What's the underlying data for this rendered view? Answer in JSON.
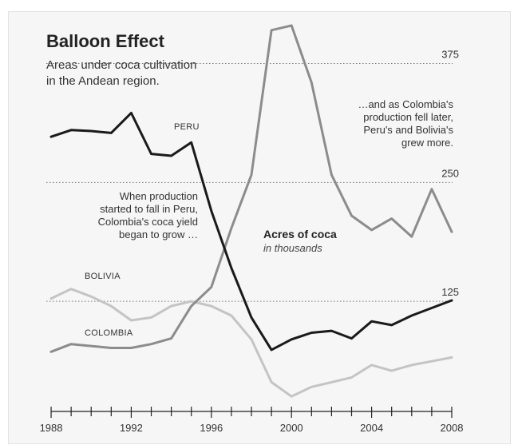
{
  "chart_data": {
    "type": "line",
    "title": "Balloon Effect",
    "subtitle_lines": [
      "Areas under coca cultivation",
      "in the Andean region."
    ],
    "units_label": "Acres of coca",
    "units_sublabel": "in thousands",
    "x": [
      1988,
      1989,
      1990,
      1991,
      1992,
      1993,
      1994,
      1995,
      1996,
      1997,
      1998,
      1999,
      2000,
      2001,
      2002,
      2003,
      2004,
      2005,
      2006,
      2007,
      2008
    ],
    "x_ticks": [
      1988,
      1992,
      1996,
      2000,
      2004,
      2008
    ],
    "xlim": [
      1987.6,
      2008.2
    ],
    "ylim": [
      0,
      430
    ],
    "yticks": [
      125,
      250,
      375
    ],
    "grid": "dotted-horizontal",
    "series": [
      {
        "name": "PERU",
        "color": "#1a1a1a",
        "values": [
          298,
          305,
          304,
          302,
          323,
          280,
          278,
          292,
          220,
          160,
          108,
          74,
          85,
          92,
          94,
          86,
          104,
          100,
          110,
          118,
          126
        ]
      },
      {
        "name": "COLOMBIA",
        "color": "#8c8c8c",
        "values": [
          72,
          80,
          78,
          76,
          76,
          80,
          86,
          120,
          140,
          202,
          258,
          410,
          415,
          355,
          258,
          215,
          200,
          212,
          193,
          243,
          198
        ]
      },
      {
        "name": "BOLIVIA",
        "color": "#c4c4c4",
        "values": [
          128,
          138,
          130,
          120,
          105,
          108,
          120,
          125,
          120,
          110,
          85,
          40,
          25,
          35,
          40,
          45,
          58,
          52,
          58,
          62,
          66
        ]
      }
    ],
    "annotations": [
      [
        "When production",
        "started to fall in Peru,",
        "Colombia's coca yield",
        "began to grow …"
      ],
      [
        "…and as Colombia's",
        "production fell later,",
        "Peru's and Bolivia's",
        "grew more."
      ]
    ]
  }
}
